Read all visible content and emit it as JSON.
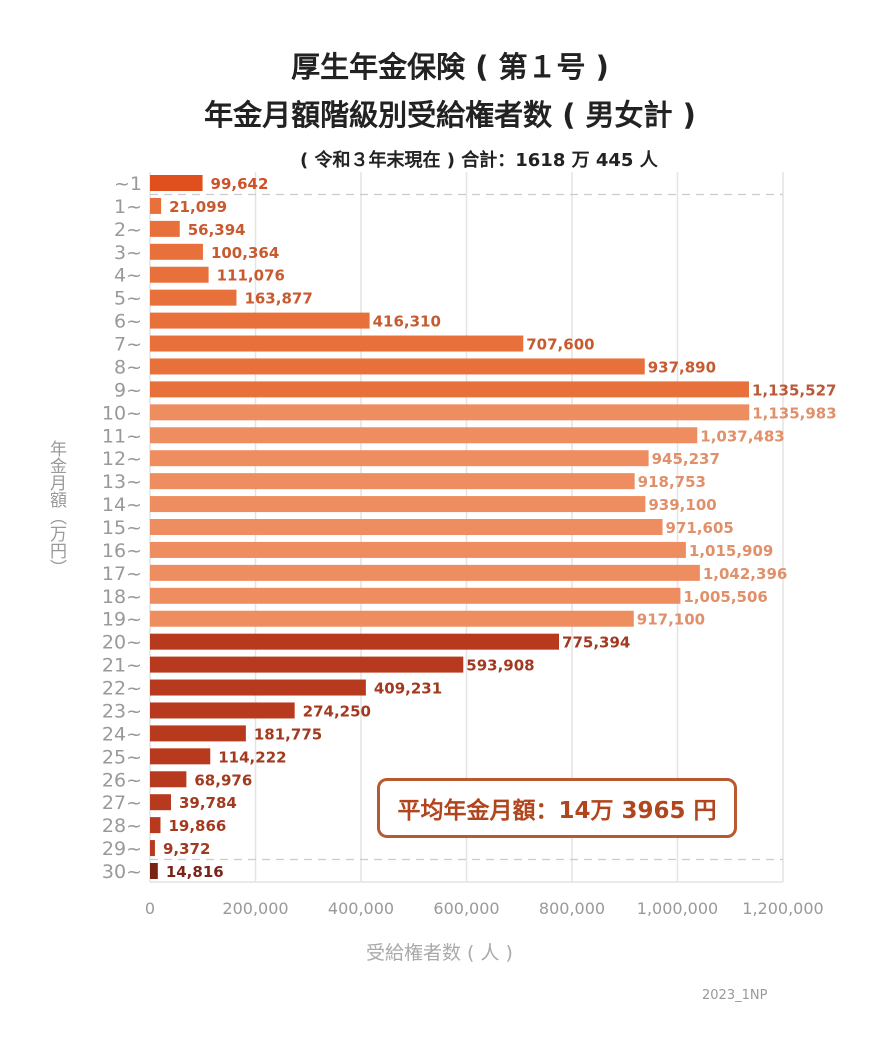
{
  "title_line1": "厚生年金保険 ( 第１号 )",
  "title_line2": "年金月額階級別受給権者数 ( 男女計 )",
  "subtitle": "( 令和３年末現在 ) 合計：1618 万 445 人",
  "average_box": "平均年金月額：14万 3965 円",
  "credit": "2023_1NP",
  "colors": {
    "first": "#e0501e",
    "orange": "#e8703a",
    "light": "#ee8e60",
    "dark": "#b83a1e",
    "darkest": "#7a2418",
    "grid": "#e4e4e4",
    "axis_text": "#999"
  },
  "chart_data": {
    "type": "bar",
    "orientation": "horizontal",
    "xlabel": "受給権者数 ( 人 )",
    "ylabel": "年金月額（万円）",
    "xlim": [
      0,
      1200000
    ],
    "xticks": [
      "0",
      "200,000",
      "400,000",
      "600,000",
      "800,000",
      "1,000,000",
      "1,200,000"
    ],
    "grid": true,
    "categories": [
      "~1",
      "1~",
      "2~",
      "3~",
      "4~",
      "5~",
      "6~",
      "7~",
      "8~",
      "9~",
      "10~",
      "11~",
      "12~",
      "13~",
      "14~",
      "15~",
      "16~",
      "17~",
      "18~",
      "19~",
      "20~",
      "21~",
      "22~",
      "23~",
      "24~",
      "25~",
      "26~",
      "27~",
      "28~",
      "29~",
      "30~"
    ],
    "values": [
      99642,
      21099,
      56394,
      100364,
      111076,
      163877,
      416310,
      707600,
      937890,
      1135527,
      1135983,
      1037483,
      945237,
      918753,
      939100,
      971605,
      1015909,
      1042396,
      1005506,
      917100,
      775394,
      593908,
      409231,
      274250,
      181775,
      114222,
      68976,
      39784,
      19866,
      9372,
      14816
    ],
    "labels": [
      "99,642",
      "21,099",
      "56,394",
      "100,364",
      "111,076",
      "163,877",
      "416,310",
      "707,600",
      "937,890",
      "1,135,527",
      "1,135,983",
      "1,037,483",
      "945,237",
      "918,753",
      "939,100",
      "971,605",
      "1,015,909",
      "1,042,396",
      "1,005,506",
      "917,100",
      "775,394",
      "593,908",
      "409,231",
      "274,250",
      "181,775",
      "114,222",
      "68,976",
      "39,784",
      "19,866",
      "9,372",
      "14,816"
    ]
  }
}
